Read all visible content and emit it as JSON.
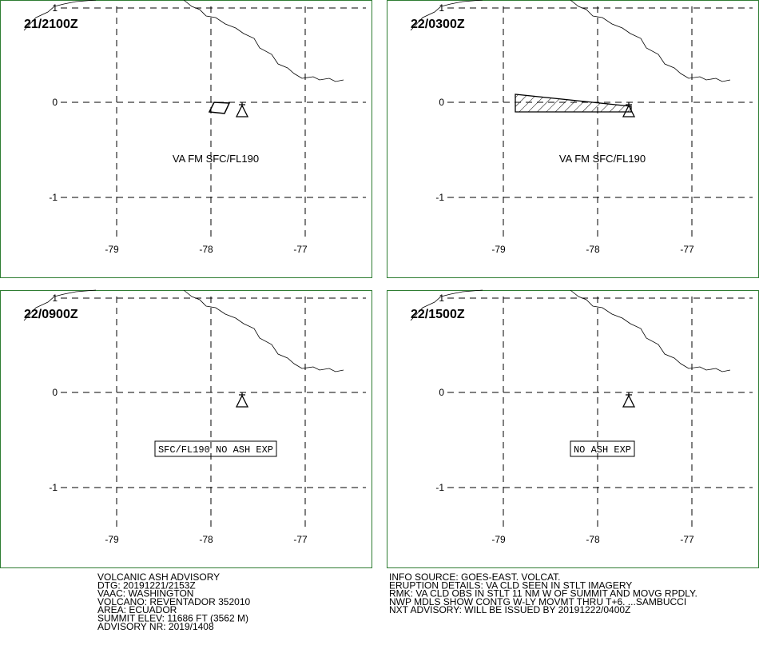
{
  "panels": [
    {
      "time": "21/2100Z",
      "forecast": "VA FM SFC/FL190"
    },
    {
      "time": "22/0300Z",
      "forecast": "VA FM SFC/FL190"
    },
    {
      "time": "22/0900Z",
      "forecast": "SFC/FL190 NO ASH EXP"
    },
    {
      "time": "22/1500Z",
      "forecast": "NO ASH EXP"
    }
  ],
  "grid": {
    "lat_labels": [
      "1",
      "0",
      "-1"
    ],
    "lon_labels": [
      "-79",
      "-78",
      "-77"
    ]
  },
  "advisory": {
    "left": [
      "VOLCANIC ASH ADVISORY",
      "DTG: 20191221/2153Z",
      "VAAC: WASHINGTON",
      "VOLCANO: REVENTADOR 352010",
      "AREA: ECUADOR",
      "SUMMIT ELEV: 11686 FT (3562 M)",
      "ADVISORY NR: 2019/1408"
    ],
    "right": [
      "INFO SOURCE: GOES-EAST. VOLCAT.",
      "ERUPTION DETAILS: VA CLD SEEN IN STLT IMAGERY",
      "RMK: VA CLD OBS IN STLT 11 NM W OF SUMMIT AND MOVG RPDLY.",
      "NWP MDLS SHOW CONTG W-LY MOVMT THRU T+6. ...SAMBUCCI",
      "NXT ADVISORY: WILL BE ISSUED BY 20191222/0400Z"
    ]
  }
}
